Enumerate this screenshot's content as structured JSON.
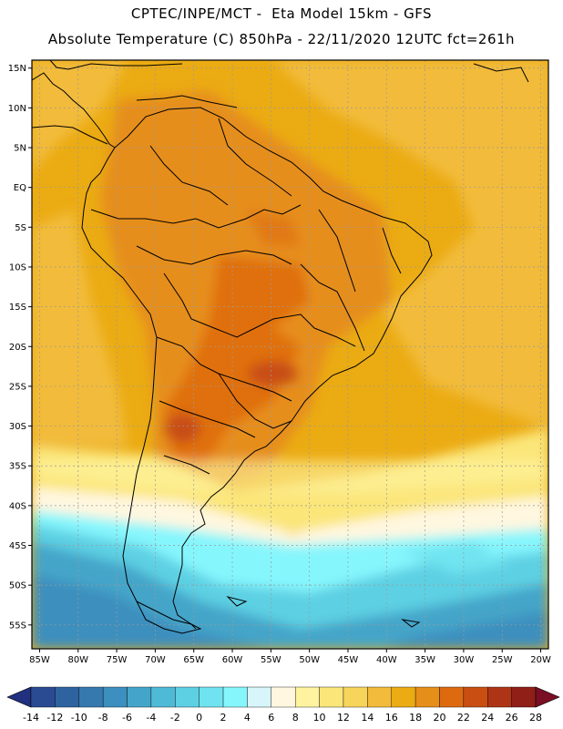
{
  "header": {
    "line1": "CPTEC/INPE/MCT -  Eta Model 15km - GFS",
    "line2": "Absolute Temperature (C) 850hPa - 22/11/2020 12UTC fct=261h"
  },
  "map": {
    "variable": "Absolute Temperature (C) 850hPa",
    "lon_range": [
      -86,
      -19
    ],
    "lat_range": [
      -58,
      16
    ],
    "lat_ticks": [
      "15N",
      "10N",
      "5N",
      "EQ",
      "5S",
      "10S",
      "15S",
      "20S",
      "25S",
      "30S",
      "35S",
      "40S",
      "45S",
      "50S",
      "55S"
    ],
    "lon_ticks": [
      "85W",
      "80W",
      "75W",
      "70W",
      "65W",
      "60W",
      "55W",
      "50W",
      "45W",
      "40W",
      "35W",
      "30W",
      "25W",
      "20W"
    ],
    "grid_line_color": "#9a9a9a",
    "coastline_color": "#000000"
  },
  "colorbar": {
    "labels": [
      "-14",
      "-12",
      "-10",
      "-8",
      "-6",
      "-4",
      "-2",
      "0",
      "2",
      "4",
      "6",
      "8",
      "10",
      "12",
      "14",
      "16",
      "18",
      "20",
      "22",
      "24",
      "26",
      "28"
    ],
    "under_color": "#21307f",
    "over_color": "#7a0e24",
    "colors": [
      "#2a4a92",
      "#2e63a0",
      "#3679af",
      "#3c8fbe",
      "#44a5c9",
      "#4fbad6",
      "#5dd0e3",
      "#6fe4f0",
      "#86f6fd",
      "#d7f5fb",
      "#fff7e0",
      "#fff3a0",
      "#fbe67a",
      "#f7d45a",
      "#f2bb3b",
      "#ebab13",
      "#e68e1a",
      "#de6a10",
      "#c84e12",
      "#ae3416",
      "#8f1f17"
    ]
  }
}
